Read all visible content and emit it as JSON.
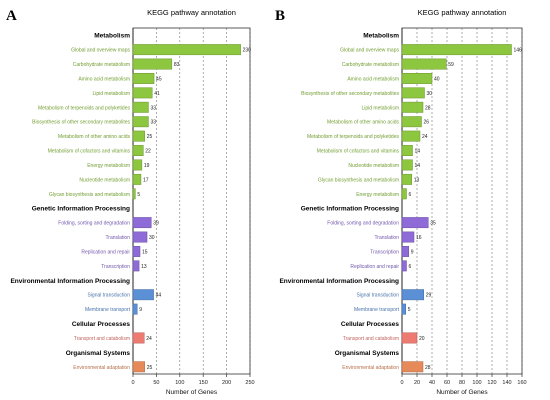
{
  "chart_data": [
    {
      "type": "bar",
      "orientation": "horizontal",
      "panel_label": "A",
      "title": "KEGG pathway annotation",
      "xlabel": "Number of Genes",
      "xlim": [
        0,
        250
      ],
      "xticks": [
        0,
        50,
        100,
        150,
        200,
        250
      ],
      "grid": "dashed vertical at ticks",
      "groups": [
        {
          "name": "Metabolism",
          "color": "#8dc63f",
          "items": [
            {
              "label": "Global and overview maps",
              "value": 230
            },
            {
              "label": "Carbohydrate metabolism",
              "value": 83
            },
            {
              "label": "Amino acid metabolism",
              "value": 45
            },
            {
              "label": "Lipid metabolism",
              "value": 41
            },
            {
              "label": "Metabolism of terpenoids and polyketides",
              "value": 33
            },
            {
              "label": "Biosynthesis of other secondary metabolites",
              "value": 33
            },
            {
              "label": "Metabolism of other amino acids",
              "value": 25
            },
            {
              "label": "Metabolism of cofactors and vitamins",
              "value": 22
            },
            {
              "label": "Energy metabolism",
              "value": 19
            },
            {
              "label": "Nucleotide metabolism",
              "value": 17
            },
            {
              "label": "Glycan biosynthesis and metabolism",
              "value": 5
            }
          ]
        },
        {
          "name": "Genetic Information Processing",
          "color": "#8e6bd6",
          "items": [
            {
              "label": "Folding, sorting and degradation",
              "value": 39
            },
            {
              "label": "Translation",
              "value": 30
            },
            {
              "label": "Replication and repair",
              "value": 15
            },
            {
              "label": "Transcription",
              "value": 13
            }
          ]
        },
        {
          "name": "Environmental Information Processing",
          "color": "#5b8fd6",
          "items": [
            {
              "label": "Signal transduction",
              "value": 44
            },
            {
              "label": "Membrane transport",
              "value": 9
            }
          ]
        },
        {
          "name": "Cellular Processes",
          "color": "#ee7b72",
          "items": [
            {
              "label": "Transport and catabolism",
              "value": 24
            }
          ]
        },
        {
          "name": "Organismal Systems",
          "color": "#e68a5a",
          "items": [
            {
              "label": "Environmental adaptation",
              "value": 25
            }
          ]
        }
      ]
    },
    {
      "type": "bar",
      "orientation": "horizontal",
      "panel_label": "B",
      "title": "KEGG pathway annotation",
      "xlabel": "Number of Genes",
      "xlim": [
        0,
        160
      ],
      "xticks": [
        0,
        20,
        40,
        60,
        80,
        100,
        120,
        140,
        160
      ],
      "grid": "dashed vertical at ticks",
      "groups": [
        {
          "name": "Metabolism",
          "color": "#8dc63f",
          "items": [
            {
              "label": "Global and overview maps",
              "value": 146
            },
            {
              "label": "Carbohydrate metabolism",
              "value": 59
            },
            {
              "label": "Amino acid metabolism",
              "value": 40
            },
            {
              "label": "Biosynthesis of other secondary metabolites",
              "value": 30
            },
            {
              "label": "Lipid metabolism",
              "value": 28
            },
            {
              "label": "Metabolism of other amino acids",
              "value": 26
            },
            {
              "label": "Metabolism of terpenoids and polyketides",
              "value": 24
            },
            {
              "label": "Metabolism of cofactors and vitamins",
              "value": 14
            },
            {
              "label": "Nucleotide metabolism",
              "value": 14
            },
            {
              "label": "Glycan biosynthesis and metabolism",
              "value": 13
            },
            {
              "label": "Energy metabolism",
              "value": 6
            }
          ]
        },
        {
          "name": "Genetic Information Processing",
          "color": "#8e6bd6",
          "items": [
            {
              "label": "Folding, sorting and degradation",
              "value": 35
            },
            {
              "label": "Translation",
              "value": 16
            },
            {
              "label": "Transcription",
              "value": 9
            },
            {
              "label": "Replication and repair",
              "value": 6
            }
          ]
        },
        {
          "name": "Environmental Information Processing",
          "color": "#5b8fd6",
          "items": [
            {
              "label": "Signal transduction",
              "value": 29
            },
            {
              "label": "Membrane transport",
              "value": 5
            }
          ]
        },
        {
          "name": "Cellular Processes",
          "color": "#ee7b72",
          "items": [
            {
              "label": "Transport and catabolism",
              "value": 20
            }
          ]
        },
        {
          "name": "Organismal Systems",
          "color": "#e68a5a",
          "items": [
            {
              "label": "Environmental adaptation",
              "value": 28
            }
          ]
        }
      ]
    }
  ]
}
